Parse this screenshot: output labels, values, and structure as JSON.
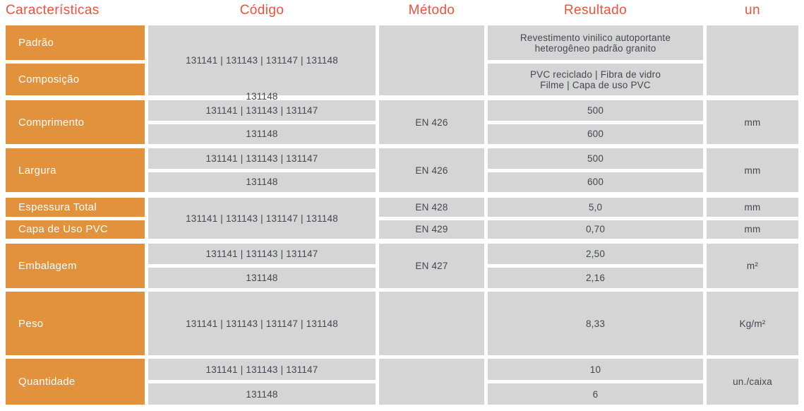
{
  "header": {
    "caracteristicas": "Características",
    "codigo": "Código",
    "metodo": "Método",
    "resultado": "Resultado",
    "un": "un"
  },
  "colors": {
    "header_red": "#F0503D",
    "label_orange": "#E2913C",
    "cell_gray": "#D6D5D5",
    "cell_text": "#424751"
  },
  "groups": [
    {
      "labels": [
        "Padrão",
        "Composição"
      ],
      "codigo": "131141 | 131143 | 131147 | 131148",
      "codigo_overflow": "131148",
      "metodo": "",
      "resultados": [
        "Revestimento vinilico autoportante\nheterogêneo padrão granito",
        "PVC reciclado | Fibra de vidro\nFilme | Capa de uso PVC"
      ],
      "un": ""
    },
    {
      "label": "Comprimento",
      "codigos": [
        "131141 | 131143 | 131147",
        "131148"
      ],
      "metodo": "EN 426",
      "resultados": [
        "500",
        "600"
      ],
      "un": "mm"
    },
    {
      "label": "Largura",
      "codigos": [
        "131141 | 131143 | 131147",
        "131148"
      ],
      "metodo": "EN 426",
      "resultados": [
        "500",
        "600"
      ],
      "un": "mm"
    },
    {
      "labels": [
        "Espessura Total",
        "Capa de Uso PVC"
      ],
      "codigo": "131141 | 131143 | 131147 | 131148",
      "metodos": [
        "EN 428",
        "EN 429"
      ],
      "resultados": [
        "5,0",
        "0,70"
      ],
      "uns": [
        "mm",
        "mm"
      ]
    },
    {
      "label": "Embalagem",
      "codigos": [
        "131141 | 131143 | 131147",
        "131148"
      ],
      "metodo": "EN 427",
      "resultados": [
        "2,50",
        "2,16"
      ],
      "un": "m²"
    },
    {
      "label": "Peso",
      "codigo": "131141 | 131143 | 131147 | 131148",
      "metodo": "",
      "resultado": "8,33",
      "un": "Kg/m²"
    },
    {
      "label": "Quantidade",
      "codigos": [
        "131141 | 131143 | 131147",
        "131148"
      ],
      "metodo": "",
      "resultados": [
        "10",
        "6"
      ],
      "un": "un./caixa"
    }
  ]
}
